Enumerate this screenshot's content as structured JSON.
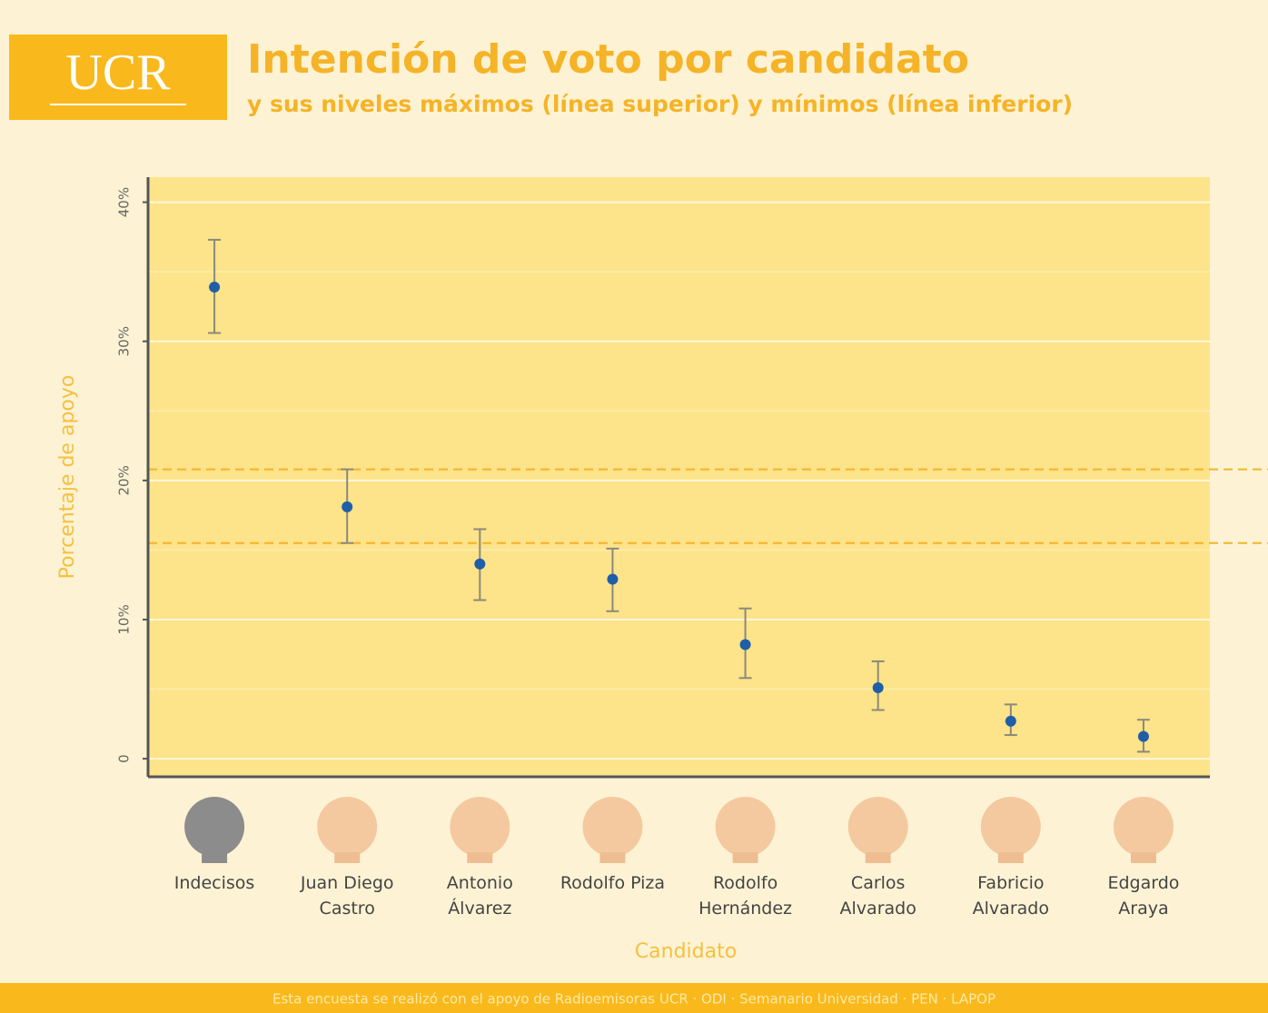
{
  "logo": "UCR",
  "footer": "Esta encuesta se realizó con el apoyo de Radioemisoras UCR · ODI · Semanario Universidad · PEN · LAPOP",
  "chart_data": {
    "type": "errorbar",
    "title": "Intención de voto por candidato",
    "subtitle": "y sus niveles máximos (línea superior) y mínimos (línea inferior)",
    "x_label": "Candidato",
    "y_label": "Porcentaje de apoyo",
    "categories": [
      "Indecisos",
      "Juan Diego Castro",
      "Antonio Álvarez",
      "Rodolfo Piza",
      "Rodolfo Hernández",
      "Carlos Alvarado",
      "Fabricio Alvarado",
      "Edgardo Araya"
    ],
    "series": [
      {
        "color": "#1f5fa8",
        "error_color": "#8a8a7a",
        "values": [
          33.9,
          18.1,
          14.0,
          12.9,
          8.2,
          5.1,
          2.7,
          1.6
        ],
        "lower": [
          30.6,
          15.5,
          11.4,
          10.6,
          5.8,
          3.5,
          1.7,
          0.5
        ],
        "upper": [
          37.3,
          20.8,
          16.5,
          15.1,
          10.8,
          7.0,
          3.9,
          2.8
        ]
      }
    ],
    "reference_lines": [
      20.8,
      15.5
    ],
    "reference_color": "#f5b327",
    "ylim": [
      -1.3,
      41.8
    ],
    "yticks": [
      0,
      {
        "value": 10,
        "label": "10%"
      },
      {
        "value": 20,
        "label": "20%"
      },
      {
        "value": 30,
        "label": "30%"
      },
      {
        "value": 40,
        "label": "40%"
      }
    ],
    "minor_yticks": [
      5,
      15,
      25,
      35
    ],
    "grid": true
  }
}
